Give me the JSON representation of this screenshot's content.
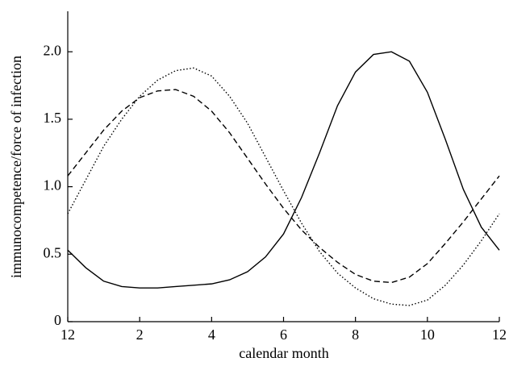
{
  "chart_data": {
    "type": "line",
    "xlabel": "calendar month",
    "ylabel": "immunocompetence/force of infection",
    "x": [
      0,
      0.5,
      1,
      1.5,
      2,
      2.5,
      3,
      3.5,
      4,
      4.5,
      5,
      5.5,
      6,
      6.5,
      7,
      7.5,
      8,
      8.5,
      9,
      9.5,
      10,
      10.5,
      11,
      11.5,
      12
    ],
    "series": [
      {
        "color": "#000000",
        "line_style": "solid",
        "values": [
          0.53,
          0.4,
          0.3,
          0.26,
          0.25,
          0.25,
          0.26,
          0.27,
          0.28,
          0.31,
          0.37,
          0.48,
          0.65,
          0.92,
          1.25,
          1.6,
          1.85,
          1.98,
          2.0,
          1.93,
          1.7,
          1.35,
          0.98,
          0.7,
          0.53
        ]
      },
      {
        "color": "#000000",
        "line_style": "dashed",
        "values": [
          1.08,
          1.25,
          1.42,
          1.56,
          1.66,
          1.71,
          1.72,
          1.67,
          1.56,
          1.4,
          1.21,
          1.02,
          0.84,
          0.68,
          0.55,
          0.44,
          0.35,
          0.3,
          0.29,
          0.33,
          0.43,
          0.58,
          0.74,
          0.91,
          1.08
        ]
      },
      {
        "color": "#000000",
        "line_style": "dotted",
        "values": [
          0.8,
          1.05,
          1.3,
          1.5,
          1.67,
          1.79,
          1.86,
          1.88,
          1.82,
          1.67,
          1.47,
          1.22,
          0.97,
          0.73,
          0.52,
          0.36,
          0.25,
          0.17,
          0.13,
          0.12,
          0.16,
          0.27,
          0.42,
          0.6,
          0.8
        ]
      }
    ],
    "xlim": [
      0,
      12
    ],
    "xticks": [
      {
        "value": 0,
        "label": "12"
      },
      2,
      4,
      6,
      8,
      10,
      12
    ],
    "ylim": [
      0,
      2.3
    ],
    "yticks": [
      0,
      0.5,
      {
        "value": 1,
        "label": "1.0"
      },
      1.5,
      {
        "value": 2,
        "label": "2.0"
      }
    ]
  }
}
